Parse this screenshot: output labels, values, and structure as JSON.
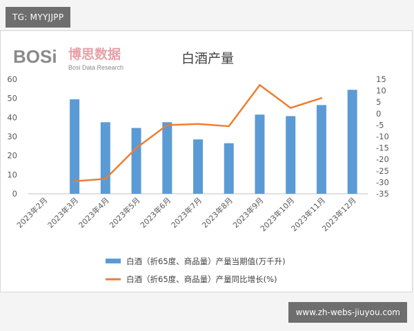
{
  "tag_label": "TG: MYYJJPP",
  "watermark_label": "www.zh-webs-jiuyou.com",
  "logo": {
    "word": "BOSi",
    "cn": "博思数据",
    "en": "Bosi Data Research"
  },
  "colors": {
    "bar": "#5b9bd5",
    "line": "#ed7d31",
    "axis": "#bfbfbf",
    "text": "#595959"
  },
  "chart_data": {
    "type": "bar+line",
    "title": "白酒产量",
    "categories": [
      "2023年2月",
      "2023年3月",
      "2023年4月",
      "2023年5月",
      "2023年6月",
      "2023年7月",
      "2023年8月",
      "2023年9月",
      "2023年10月",
      "2023年11月",
      "2023年12月"
    ],
    "series": [
      {
        "name": "白酒（折65度、商品量）产量当期值(万千升)",
        "type": "bar",
        "axis": "left",
        "values": [
          null,
          49.5,
          37.5,
          34.5,
          37.5,
          28.5,
          26.5,
          41.5,
          40.7,
          46.5,
          54.5
        ]
      },
      {
        "name": "白酒（折65度、商品量）产量同比增长(%)",
        "type": "line",
        "axis": "right",
        "values": [
          null,
          -29.5,
          -28.5,
          -15,
          -5,
          -4.5,
          -5.5,
          12.5,
          2.5,
          6.8,
          null
        ]
      }
    ],
    "y_left": {
      "min": 0,
      "max": 60,
      "step": 10,
      "ticks": [
        "0",
        "10",
        "20",
        "30",
        "40",
        "50",
        "60"
      ]
    },
    "y_right": {
      "min": -35,
      "max": 15,
      "step": 5,
      "ticks": [
        "-35",
        "-30",
        "-25",
        "-20",
        "-15",
        "-10",
        "-5",
        "0",
        "5",
        "10",
        "15"
      ]
    },
    "grid": false,
    "legend_position": "bottom"
  }
}
